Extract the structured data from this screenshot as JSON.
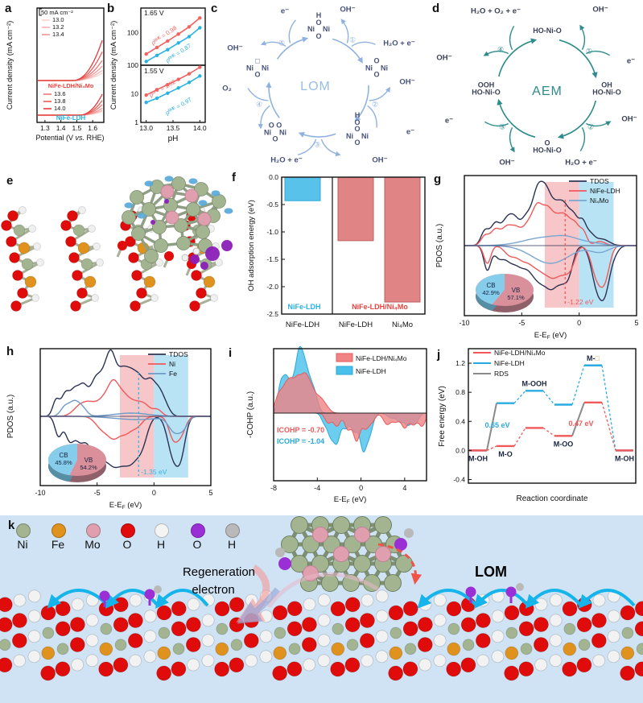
{
  "colors": {
    "red": "#e8443f",
    "red_ramp": [
      "#f9d2d1",
      "#f6b4b3",
      "#f29694",
      "#ee7876",
      "#ea5a57",
      "#e63c38"
    ],
    "cyan": "#29b2e2",
    "navy": "#2b3254",
    "steel": "#6d9bc9",
    "lightsteel": "#7aa6d2",
    "pink_shade": "#f3b3b7",
    "blue_shade": "#a5dcf2",
    "bar_blue": "#58c2ea",
    "bar_blue_edge": "#2fa8d8",
    "bar_red": "#e08486",
    "bar_red_edge": "#c05f62",
    "lom": "#8fb2df",
    "aem": "#2e8b8b",
    "ink": "#46527a",
    "pie_cb": "#86cdec",
    "pie_vb": "#d9909b",
    "pie_cb_dark": "#568ea6",
    "pie_vb_dark": "#8f5f6a",
    "gray": "#8a8a8a",
    "k_bg": "#cfe3f4",
    "atom_Ni": "#a3b491",
    "atom_Fe": "#e0921e",
    "atom_Mo": "#df9fae",
    "atom_O": "#e00b0b",
    "atom_H": "#f4f4f4",
    "atom_Opurple": "#9b2fd6",
    "atom_Hgray": "#b9b9b9",
    "regen": "#f37f7f",
    "electron": "#5b5bd0",
    "vac_box": "#d8a050"
  },
  "labels": {
    "ef": {
      "pre": "E-E",
      "sub": "F",
      "post": " (eV)"
    }
  },
  "panel_a": {
    "label": "a",
    "ylabel": "Current density (mA cm⁻²)",
    "xlabel_parts": {
      "pre": "Potential (V ",
      "it": "vs.",
      "post": " RHE)"
    },
    "xticks": [
      "1.3",
      "1.4",
      "1.5",
      "1.6"
    ],
    "scalebar": "50 mA cm⁻²",
    "legend_top": [
      "13.0",
      "13.2",
      "13.4"
    ],
    "legend_bottom": [
      "13.6",
      "13.8",
      "14.0"
    ],
    "group1": "NiFe-LDH/Ni₄Mo",
    "group2": "NiFe-LDH"
  },
  "panel_b": {
    "label": "b",
    "ylabel": "Current density (mA cm⁻²)",
    "xlabel": "pH",
    "xticks": [
      "13.0",
      "13.5",
      "14.0"
    ],
    "top_title": "1.65 V",
    "bottom_title": "1.55 V",
    "top_ytick": "100",
    "bottom_yticks": [
      "100",
      "10",
      "1"
    ],
    "top_red_slope": "ρᴿᴴᴱ = 0.98",
    "top_blue_slope": "ρᴿᴴᴱ = 0.87",
    "bottom_red_slope": "ρᴿᴴᴱ = 1.02",
    "bottom_blue_slope": "ρᴿᴴᴱ = 0.97"
  },
  "panel_c": {
    "label": "c",
    "center": "LOM",
    "steps": [
      "①",
      "②",
      "③",
      "④",
      "⑤"
    ],
    "species": [
      [
        "H",
        "O",
        "Ni    Ni",
        "O"
      ],
      [
        "O",
        "Ni    Ni",
        "O"
      ],
      [
        "H",
        "O",
        "O",
        "Ni    Ni",
        "O"
      ],
      [
        "O O",
        "Ni    Ni",
        "O"
      ],
      [
        "□",
        "Ni    Ni",
        "O"
      ]
    ],
    "io": [
      "e⁻",
      "OH⁻",
      "H₂O + e⁻",
      "OH⁻",
      "e⁻",
      "OH⁻",
      "H₂O + e⁻",
      "O₂",
      "OH⁻"
    ]
  },
  "panel_d": {
    "label": "d",
    "center": "AEM",
    "steps": [
      "①",
      "②",
      "③",
      "④"
    ],
    "species": [
      [
        "HO-Ni-O"
      ],
      [
        "OH",
        "HO-Ni-O"
      ],
      [
        "O",
        "HO-Ni-O"
      ],
      [
        "OOH",
        "HO-Ni-O"
      ]
    ],
    "io": [
      "H₂O + O₂ + e⁻",
      "OH⁻",
      "e⁻",
      "OH⁻",
      "H₂O + e⁻",
      "OH⁻",
      "e⁻",
      "OH⁻"
    ]
  },
  "panel_e": {
    "label": "e"
  },
  "panel_f": {
    "label": "f",
    "ylabel": "OH adsorption energy (eV)",
    "yticks": [
      "0.0",
      "-0.5",
      "-1.0",
      "-1.5",
      "-2.0",
      "-2.5"
    ],
    "group_label_blue": "NiFe-LDH",
    "group_label_red": "NiFe-LDH/Ni₄Mo"
  },
  "panel_g": {
    "label": "g",
    "ylabel": "PDOS (a.u.)",
    "xticks": [
      "-10",
      "-5",
      "0",
      "5"
    ],
    "legend": [
      "TDOS",
      "NiFe-LDH",
      "Ni₄Mo"
    ],
    "vline_label": "-1.22 eV",
    "pie": {
      "cb_name": "CB",
      "cb_pct": "42.9%",
      "vb_name": "VB",
      "vb_pct": "57.1%"
    }
  },
  "panel_h": {
    "label": "h",
    "ylabel": "PDOS (a.u.)",
    "xticks": [
      "-10",
      "-5",
      "0",
      "5"
    ],
    "legend": [
      "TDOS",
      "Ni",
      "Fe"
    ],
    "vline_label": "-1.35 eV",
    "pie": {
      "cb_name": "CB",
      "cb_pct": "45.8%",
      "vb_name": "VB",
      "vb_pct": "54.2%"
    }
  },
  "panel_i": {
    "label": "i",
    "ylabel": "-COHP (a.u.)",
    "xticks": [
      "-8",
      "-4",
      "0",
      "4"
    ],
    "legend_red": "NiFe-LDH/Ni₄Mo",
    "legend_blue": "NiFe-LDH",
    "icohp_red": "ICOHP = -0.70",
    "icohp_blue": "ICOHP = -1.04"
  },
  "panel_j": {
    "label": "j",
    "ylabel": "Free energy (eV)",
    "xlabel": "Reaction coordinate",
    "yticks": [
      "-0.4",
      "0.0",
      "0.4",
      "0.8",
      "1.2"
    ],
    "legend": [
      "NiFe-LDH/Ni₄Mo",
      "NiFe-LDH",
      "RDS"
    ],
    "barrier_blue": "0.65 eV",
    "barrier_red": "0.47 eV"
  },
  "panel_k": {
    "label": "k",
    "legend": [
      {
        "symbol": "Ni",
        "color": "#a3b491"
      },
      {
        "symbol": "Fe",
        "color": "#e0921e"
      },
      {
        "symbol": "Mo",
        "color": "#df9fae"
      },
      {
        "symbol": "O",
        "color": "#e00b0b"
      },
      {
        "symbol": "H",
        "color": "#f4f4f4"
      },
      {
        "symbol": "O",
        "color": "#9b2fd6"
      },
      {
        "symbol": "H",
        "color": "#b9b9b9"
      }
    ],
    "regeneration": "Regeneration",
    "electron": "electron",
    "lom": "LOM"
  },
  "chart_data": [
    {
      "panel": "a",
      "type": "line",
      "xlabel": "Potential (V vs. RHE)",
      "ylabel": "Current density (mA cm⁻²)",
      "x_ticks": [
        1.3,
        1.4,
        1.5,
        1.6
      ],
      "scalebar": "50 mA cm⁻²",
      "ph_values": [
        "13.0",
        "13.2",
        "13.4",
        "13.6",
        "13.8",
        "14.0"
      ],
      "groups": [
        {
          "name": "NiFe-LDH/Ni₄Mo",
          "onset_V": 1.45,
          "relative_heights": [
            10,
            14,
            20,
            28,
            40,
            56
          ]
        },
        {
          "name": "NiFe-LDH",
          "onset_V": 1.48,
          "relative_heights": [
            5,
            7,
            10,
            15,
            21,
            30
          ]
        }
      ]
    },
    {
      "panel": "b",
      "type": "scatter",
      "xlabel": "pH",
      "ylabel": "Current density (mA cm⁻²)",
      "yscale": "log",
      "x": [
        13.0,
        13.2,
        13.4,
        13.6,
        13.8,
        14.0
      ],
      "subpanels": [
        {
          "potential": "1.65 V",
          "series": [
            {
              "name": "NiFe-LDH/Ni₄Mo",
              "slope": "ρᴿᴴᴱ = 0.98",
              "y": [
                22,
                35,
                55,
                90,
                150,
                280
              ]
            },
            {
              "name": "NiFe-LDH",
              "slope": "ρᴿᴴᴱ = 0.87",
              "y": [
                13,
                20,
                30,
                48,
                75,
                140
              ]
            }
          ]
        },
        {
          "potential": "1.55 V",
          "series": [
            {
              "name": "NiFe-LDH/Ni₄Mo",
              "slope": "ρᴿᴴᴱ = 1.02",
              "y": [
                9,
                14,
                21,
                32,
                50,
                85
              ]
            },
            {
              "name": "NiFe-LDH",
              "slope": "ρᴿᴴᴱ = 0.97",
              "y": [
                5,
                7,
                10.5,
                16,
                25,
                42
              ]
            }
          ]
        }
      ]
    },
    {
      "panel": "f",
      "type": "bar",
      "ylabel": "OH adsorption energy (eV)",
      "categories": [
        "NiFe-LDH",
        "NiFe-LDH",
        "Ni₄Mo"
      ],
      "values": [
        -0.43,
        -1.16,
        -2.28
      ],
      "ylim": [
        -2.5,
        0
      ],
      "group_labels": [
        "NiFe-LDH",
        "NiFe-LDH/Ni₄Mo"
      ]
    },
    {
      "panel": "g",
      "type": "line",
      "xlabel": "E-EF (eV)",
      "ylabel": "PDOS (a.u.)",
      "xlim": [
        -10,
        5
      ],
      "legend": [
        "TDOS",
        "NiFe-LDH",
        "Ni₄Mo"
      ],
      "band_center_eV": -1.22,
      "pie": {
        "CB": 42.9,
        "VB": 57.1
      },
      "shaded_regions": [
        [
          -3,
          0
        ],
        [
          0,
          3
        ]
      ]
    },
    {
      "panel": "h",
      "type": "line",
      "xlabel": "E-EF (eV)",
      "ylabel": "PDOS (a.u.)",
      "xlim": [
        -10,
        5
      ],
      "legend": [
        "TDOS",
        "Ni",
        "Fe"
      ],
      "band_center_eV": -1.35,
      "pie": {
        "CB": 45.8,
        "VB": 54.2
      },
      "shaded_regions": [
        [
          -3,
          0
        ],
        [
          0,
          3
        ]
      ]
    },
    {
      "panel": "i",
      "type": "area",
      "xlabel": "E-EF (eV)",
      "ylabel": "-COHP (a.u.)",
      "xlim": [
        -8,
        6
      ],
      "legend": [
        "NiFe-LDH/Ni₄Mo",
        "NiFe-LDH"
      ],
      "icohp": [
        {
          "name": "NiFe-LDH/Ni₄Mo",
          "value": -0.7
        },
        {
          "name": "NiFe-LDH",
          "value": -1.04
        }
      ]
    },
    {
      "panel": "j",
      "type": "line",
      "xlabel": "Reaction coordinate",
      "ylabel": "Free energy (eV)",
      "ylim": [
        -0.4,
        1.4
      ],
      "states": [
        "M-OH",
        "M-O",
        "M-OOH",
        "M-OO",
        "M-□",
        "M-OH"
      ],
      "series": [
        {
          "name": "NiFe-LDH/Ni₄Mo",
          "color": "red",
          "values": [
            0,
            0.06,
            0.31,
            0.2,
            0.66,
            0
          ]
        },
        {
          "name": "NiFe-LDH",
          "color": "blue",
          "values": [
            0,
            0.65,
            0.82,
            0.63,
            1.17,
            0
          ]
        }
      ],
      "rds": [
        {
          "series": "NiFe-LDH",
          "step": "M-OH→M-O",
          "barrier_eV": 0.65
        },
        {
          "series": "NiFe-LDH/Ni₄Mo",
          "step": "M-OO→M-□",
          "barrier_eV": 0.47
        }
      ]
    }
  ]
}
